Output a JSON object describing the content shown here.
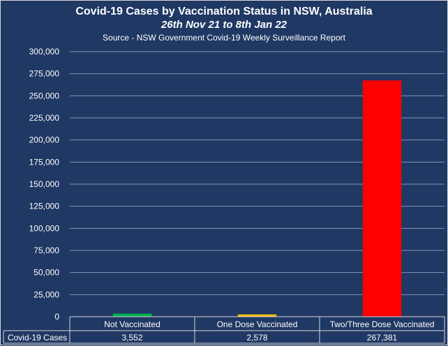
{
  "chart_data": {
    "type": "bar",
    "title": "Covid-19 Cases by Vaccination Status in NSW, Australia",
    "subtitle": "26th Nov 21 to 8th Jan 22",
    "source": "Source - NSW Government Covid-19 Weekly Surveillance Report",
    "categories": [
      "Not Vaccinated",
      "One Dose Vaccinated",
      "Two/Three Dose Vaccinated"
    ],
    "series": [
      {
        "name": "Covid-19 Cases",
        "values": [
          3552,
          2578,
          267381
        ],
        "labels": [
          "3,552",
          "2,578",
          "267,381"
        ],
        "colors": [
          "#00b050",
          "#ffc000",
          "#ff0000"
        ]
      }
    ],
    "y_ticks": [
      "0",
      "25,000",
      "50,000",
      "75,000",
      "100,000",
      "125,000",
      "150,000",
      "175,000",
      "200,000",
      "225,000",
      "250,000",
      "275,000",
      "300,000"
    ],
    "ylim": [
      0,
      300000
    ],
    "xlabel": "",
    "ylabel": "",
    "grid": true,
    "legend": "none",
    "data_table": true,
    "colors": {
      "background": "#1f3864",
      "text": "#ffffff",
      "gridline": "#8497b0"
    }
  }
}
